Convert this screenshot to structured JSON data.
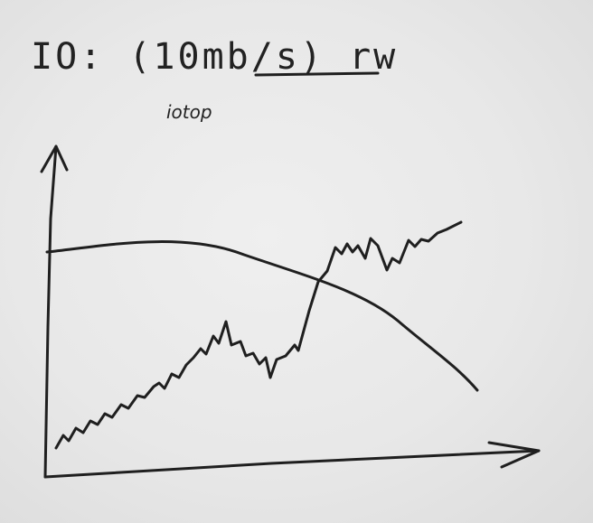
{
  "title": "IO: (10mb/s) rw",
  "subtitle": "iotop",
  "colors": {
    "ink": "#1f1f1f",
    "board": "#e9e9e9"
  }
}
